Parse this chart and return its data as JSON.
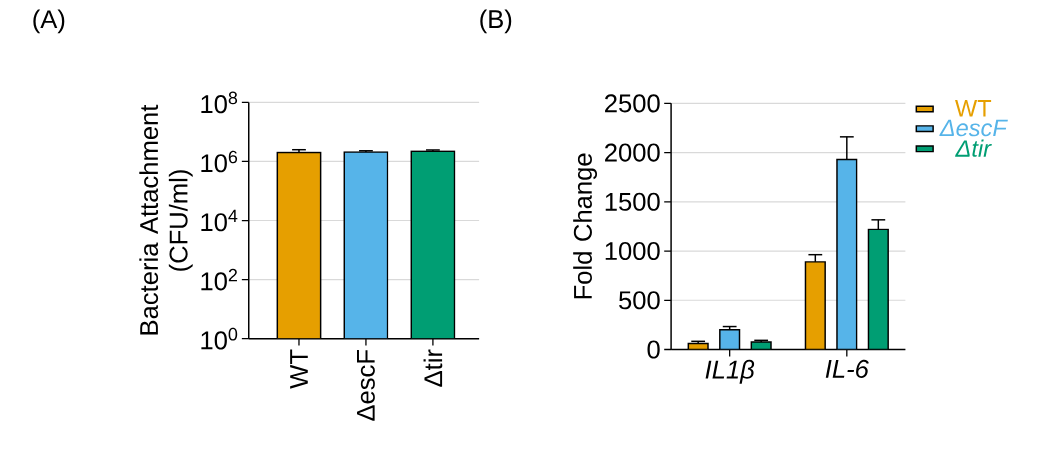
{
  "chart_data": [
    {
      "type": "bar",
      "title": "(A)",
      "ylabel": "Bacteria Attachment (CFU/ml)",
      "categories": [
        "WT",
        "ΔescF",
        "Δtir"
      ],
      "values": [
        2000000,
        2100000,
        2200000
      ],
      "colors": [
        "#e69f00",
        "#56b4e9",
        "#009e73"
      ],
      "errors": [
        [
          2000000,
          2500000
        ],
        [
          2100000,
          2300000
        ],
        [
          2200000,
          2450000
        ]
      ],
      "log": "y",
      "ylim": [
        1,
        100000000
      ],
      "yticks": [
        {
          "value": 1,
          "label": "10$^{0}$"
        },
        {
          "value": 100,
          "label": "10$^{2}$"
        },
        {
          "value": 10000,
          "label": "10$^{4}$"
        },
        {
          "value": 1000000,
          "label": "10$^{6}$"
        },
        {
          "value": 100000000,
          "label": "10$^{8}$"
        }
      ],
      "grid": "y"
    },
    {
      "type": "bar",
      "title": "(B)",
      "ylabel": "Fold Change",
      "categories": [
        "IL1β",
        "IL-6"
      ],
      "series": [
        {
          "name": "WT",
          "color": "#e69f00",
          "values": [
            60,
            890
          ],
          "errors": [
            [
              60,
              83
            ],
            [
              890,
              963
            ]
          ]
        },
        {
          "name": "ΔescF",
          "color": "#56b4e9",
          "values": [
            200,
            1930
          ],
          "errors": [
            [
              200,
              233
            ],
            [
              1930,
              2160
            ]
          ]
        },
        {
          "name": "Δtir",
          "color": "#009e73",
          "values": [
            75,
            1220
          ],
          "errors": [
            [
              75,
              93
            ],
            [
              1220,
              1317
            ]
          ]
        }
      ],
      "ylim": [
        0,
        2500
      ],
      "yticks": [
        0,
        500,
        1000,
        1500,
        2000,
        2500
      ],
      "grid": "y",
      "legend": "right"
    }
  ]
}
